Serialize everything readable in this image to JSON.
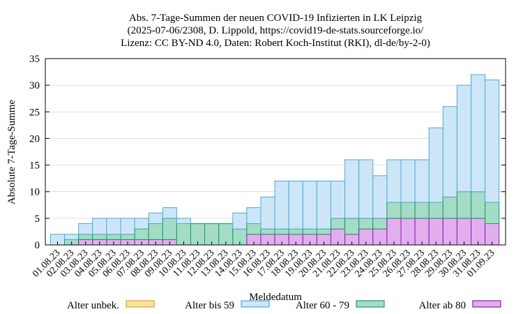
{
  "chart_data": {
    "type": "bar",
    "stacked": true,
    "title_lines": [
      "Abs. 7-Tage-Summen der neuen COVID-19 Infizierten in LK Leipzig",
      "(2025-07-06/2308, D. Lippold, https://covid19-de-stats.sourceforge.io/",
      "Lizenz: CC BY-ND 4.0, Daten: Robert Koch-Institut (RKI), dl-de/by-2-0)"
    ],
    "xlabel": "Meldedatum",
    "ylabel": "Absolute 7-Tage-Summe",
    "ylim": [
      0,
      35
    ],
    "yticks": [
      0,
      5,
      10,
      15,
      20,
      25,
      30,
      35
    ],
    "categories": [
      "01.08.23",
      "02.08.23",
      "03.08.23",
      "04.08.23",
      "05.08.23",
      "06.08.23",
      "07.08.23",
      "08.08.23",
      "09.08.23",
      "10.08.23",
      "11.08.23",
      "12.08.23",
      "13.08.23",
      "14.08.23",
      "15.08.23",
      "16.08.23",
      "17.08.23",
      "18.08.23",
      "19.08.23",
      "20.08.23",
      "21.08.23",
      "22.08.23",
      "23.08.23",
      "24.08.23",
      "25.08.23",
      "26.08.23",
      "27.08.23",
      "28.08.23",
      "29.08.23",
      "30.08.23",
      "31.08.23",
      "01.09.23"
    ],
    "legend_position": "bottom",
    "series": [
      {
        "name": "Alter unbek.",
        "color": "#fbe3a4",
        "stroke": "#e0a21b",
        "values": [
          0,
          0,
          0,
          0,
          0,
          0,
          0,
          0,
          0,
          0,
          0,
          0,
          0,
          0,
          0,
          0,
          0,
          0,
          0,
          0,
          0,
          0,
          0,
          0,
          0,
          0,
          0,
          0,
          0,
          0,
          0,
          0
        ]
      },
      {
        "name": "Alter bis 59",
        "color": "#cde6f7",
        "stroke": "#4aa9d8",
        "values": [
          2,
          1,
          2,
          3,
          3,
          3,
          2,
          2,
          2,
          1,
          0,
          0,
          0,
          3,
          3,
          6,
          9,
          9,
          9,
          9,
          7,
          11,
          11,
          8,
          8,
          8,
          8,
          14,
          17,
          20,
          22,
          23
        ]
      },
      {
        "name": "Alter 60 - 79",
        "color": "#a5dcc5",
        "stroke": "#1a9868",
        "values": [
          0,
          1,
          1,
          1,
          1,
          1,
          2,
          3,
          4,
          4,
          4,
          4,
          4,
          3,
          2,
          1,
          1,
          1,
          1,
          1,
          2,
          3,
          2,
          2,
          3,
          3,
          3,
          3,
          4,
          5,
          5,
          4
        ]
      },
      {
        "name": "Alter ab 80",
        "color": "#e3aeee",
        "stroke": "#8a1ab0",
        "values": [
          0,
          0,
          1,
          1,
          1,
          1,
          1,
          1,
          1,
          0,
          0,
          0,
          0,
          0,
          2,
          2,
          2,
          2,
          2,
          2,
          3,
          2,
          3,
          3,
          5,
          5,
          5,
          5,
          5,
          5,
          5,
          4
        ]
      }
    ]
  }
}
